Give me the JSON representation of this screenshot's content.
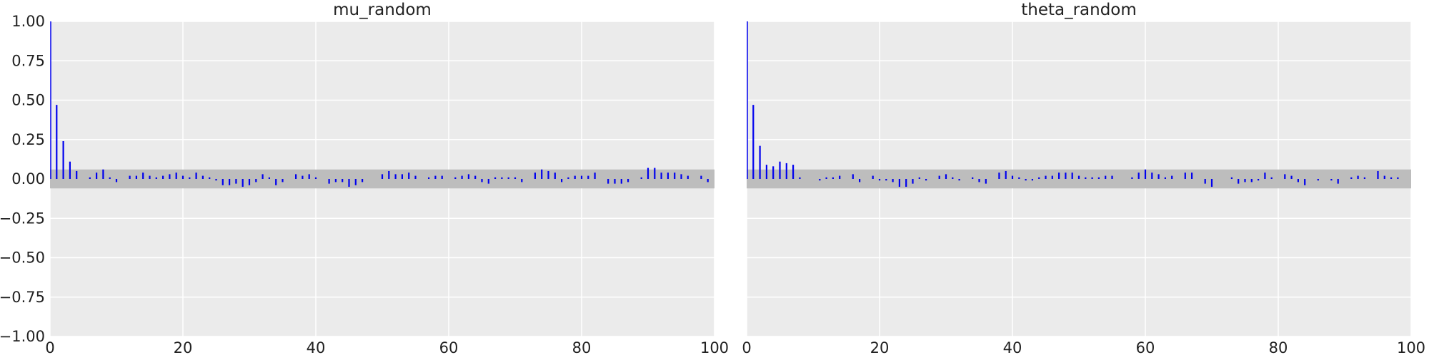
{
  "chart_data": [
    {
      "type": "bar",
      "title": "mu_random",
      "xlabel": "",
      "ylabel": "",
      "xlim": [
        0,
        100
      ],
      "ylim": [
        -1.0,
        1.0
      ],
      "xticks": [
        "0",
        "20",
        "40",
        "60",
        "80",
        "100"
      ],
      "yticks": [
        "−1.00",
        "−0.75",
        "−0.50",
        "−0.25",
        "0.00",
        "0.25",
        "0.50",
        "0.75",
        "1.00"
      ],
      "grid": true,
      "confidence_band": [
        -0.06,
        0.06
      ],
      "lags": [
        0,
        1,
        2,
        3,
        4,
        5,
        6,
        7,
        8,
        9,
        10,
        11,
        12,
        13,
        14,
        15,
        16,
        17,
        18,
        19,
        20,
        21,
        22,
        23,
        24,
        25,
        26,
        27,
        28,
        29,
        30,
        31,
        32,
        33,
        34,
        35,
        36,
        37,
        38,
        39,
        40,
        41,
        42,
        43,
        44,
        45,
        46,
        47,
        48,
        49,
        50,
        51,
        52,
        53,
        54,
        55,
        56,
        57,
        58,
        59,
        60,
        61,
        62,
        63,
        64,
        65,
        66,
        67,
        68,
        69,
        70,
        71,
        72,
        73,
        74,
        75,
        76,
        77,
        78,
        79,
        80,
        81,
        82,
        83,
        84,
        85,
        86,
        87,
        88,
        89,
        90,
        91,
        92,
        93,
        94,
        95,
        96,
        97,
        98,
        99
      ],
      "values": [
        1.0,
        0.47,
        0.24,
        0.11,
        0.05,
        0.0,
        0.01,
        0.04,
        0.06,
        0.01,
        -0.02,
        0.0,
        0.02,
        0.02,
        0.04,
        0.02,
        0.01,
        0.02,
        0.03,
        0.04,
        0.02,
        0.01,
        0.04,
        0.02,
        0.01,
        -0.01,
        -0.04,
        -0.04,
        -0.03,
        -0.05,
        -0.04,
        -0.02,
        0.03,
        0.01,
        -0.04,
        -0.02,
        0.0,
        0.03,
        0.02,
        0.03,
        0.01,
        0.0,
        -0.03,
        -0.02,
        -0.02,
        -0.05,
        -0.04,
        -0.02,
        0.0,
        0.0,
        0.03,
        0.05,
        0.03,
        0.03,
        0.04,
        0.02,
        0.0,
        0.01,
        0.02,
        0.02,
        0.0,
        0.01,
        0.02,
        0.03,
        0.02,
        -0.02,
        -0.03,
        0.01,
        0.01,
        0.01,
        0.01,
        -0.02,
        0.0,
        0.04,
        0.06,
        0.05,
        0.04,
        -0.02,
        0.01,
        0.02,
        0.02,
        0.02,
        0.04,
        0.0,
        -0.03,
        -0.03,
        -0.03,
        -0.02,
        0.0,
        0.01,
        0.07,
        0.07,
        0.04,
        0.04,
        0.04,
        0.03,
        0.02,
        0.0,
        0.02,
        -0.02
      ]
    },
    {
      "type": "bar",
      "title": "theta_random",
      "xlabel": "",
      "ylabel": "",
      "xlim": [
        0,
        100
      ],
      "ylim": [
        -1.0,
        1.0
      ],
      "xticks": [
        "0",
        "20",
        "40",
        "60",
        "80",
        "100"
      ],
      "grid": true,
      "confidence_band": [
        -0.06,
        0.06
      ],
      "lags": [
        0,
        1,
        2,
        3,
        4,
        5,
        6,
        7,
        8,
        9,
        10,
        11,
        12,
        13,
        14,
        15,
        16,
        17,
        18,
        19,
        20,
        21,
        22,
        23,
        24,
        25,
        26,
        27,
        28,
        29,
        30,
        31,
        32,
        33,
        34,
        35,
        36,
        37,
        38,
        39,
        40,
        41,
        42,
        43,
        44,
        45,
        46,
        47,
        48,
        49,
        50,
        51,
        52,
        53,
        54,
        55,
        56,
        57,
        58,
        59,
        60,
        61,
        62,
        63,
        64,
        65,
        66,
        67,
        68,
        69,
        70,
        71,
        72,
        73,
        74,
        75,
        76,
        77,
        78,
        79,
        80,
        81,
        82,
        83,
        84,
        85,
        86,
        87,
        88,
        89,
        90,
        91,
        92,
        93,
        94,
        95,
        96,
        97,
        98,
        99
      ],
      "values": [
        1.0,
        0.47,
        0.21,
        0.09,
        0.08,
        0.11,
        0.1,
        0.09,
        0.01,
        0.0,
        0.0,
        -0.01,
        0.01,
        0.01,
        0.02,
        0.0,
        0.03,
        -0.02,
        0.0,
        0.02,
        -0.01,
        -0.01,
        -0.02,
        -0.05,
        -0.05,
        -0.03,
        0.01,
        -0.01,
        0.0,
        0.02,
        0.03,
        0.01,
        -0.01,
        0.0,
        0.01,
        -0.02,
        -0.03,
        0.0,
        0.04,
        0.05,
        0.02,
        0.01,
        -0.01,
        -0.01,
        0.01,
        0.02,
        0.02,
        0.04,
        0.04,
        0.04,
        0.02,
        0.01,
        0.01,
        0.01,
        0.02,
        0.02,
        0.0,
        0.0,
        0.01,
        0.04,
        0.06,
        0.04,
        0.03,
        0.01,
        0.02,
        0.0,
        0.04,
        0.04,
        0.0,
        -0.03,
        -0.05,
        0.0,
        0.0,
        0.01,
        -0.03,
        -0.02,
        -0.02,
        -0.01,
        0.04,
        0.01,
        0.0,
        0.03,
        0.02,
        -0.02,
        -0.04,
        0.0,
        -0.01,
        0.0,
        -0.01,
        -0.03,
        0.0,
        0.01,
        0.02,
        0.01,
        0.0,
        0.05,
        0.02,
        0.01,
        0.01,
        0.0
      ]
    }
  ],
  "colors": {
    "bar": "#0000ee",
    "band": "#bdbdbd",
    "plot_background": "#ebebeb",
    "grid": "#ffffff",
    "text": "#222222"
  }
}
